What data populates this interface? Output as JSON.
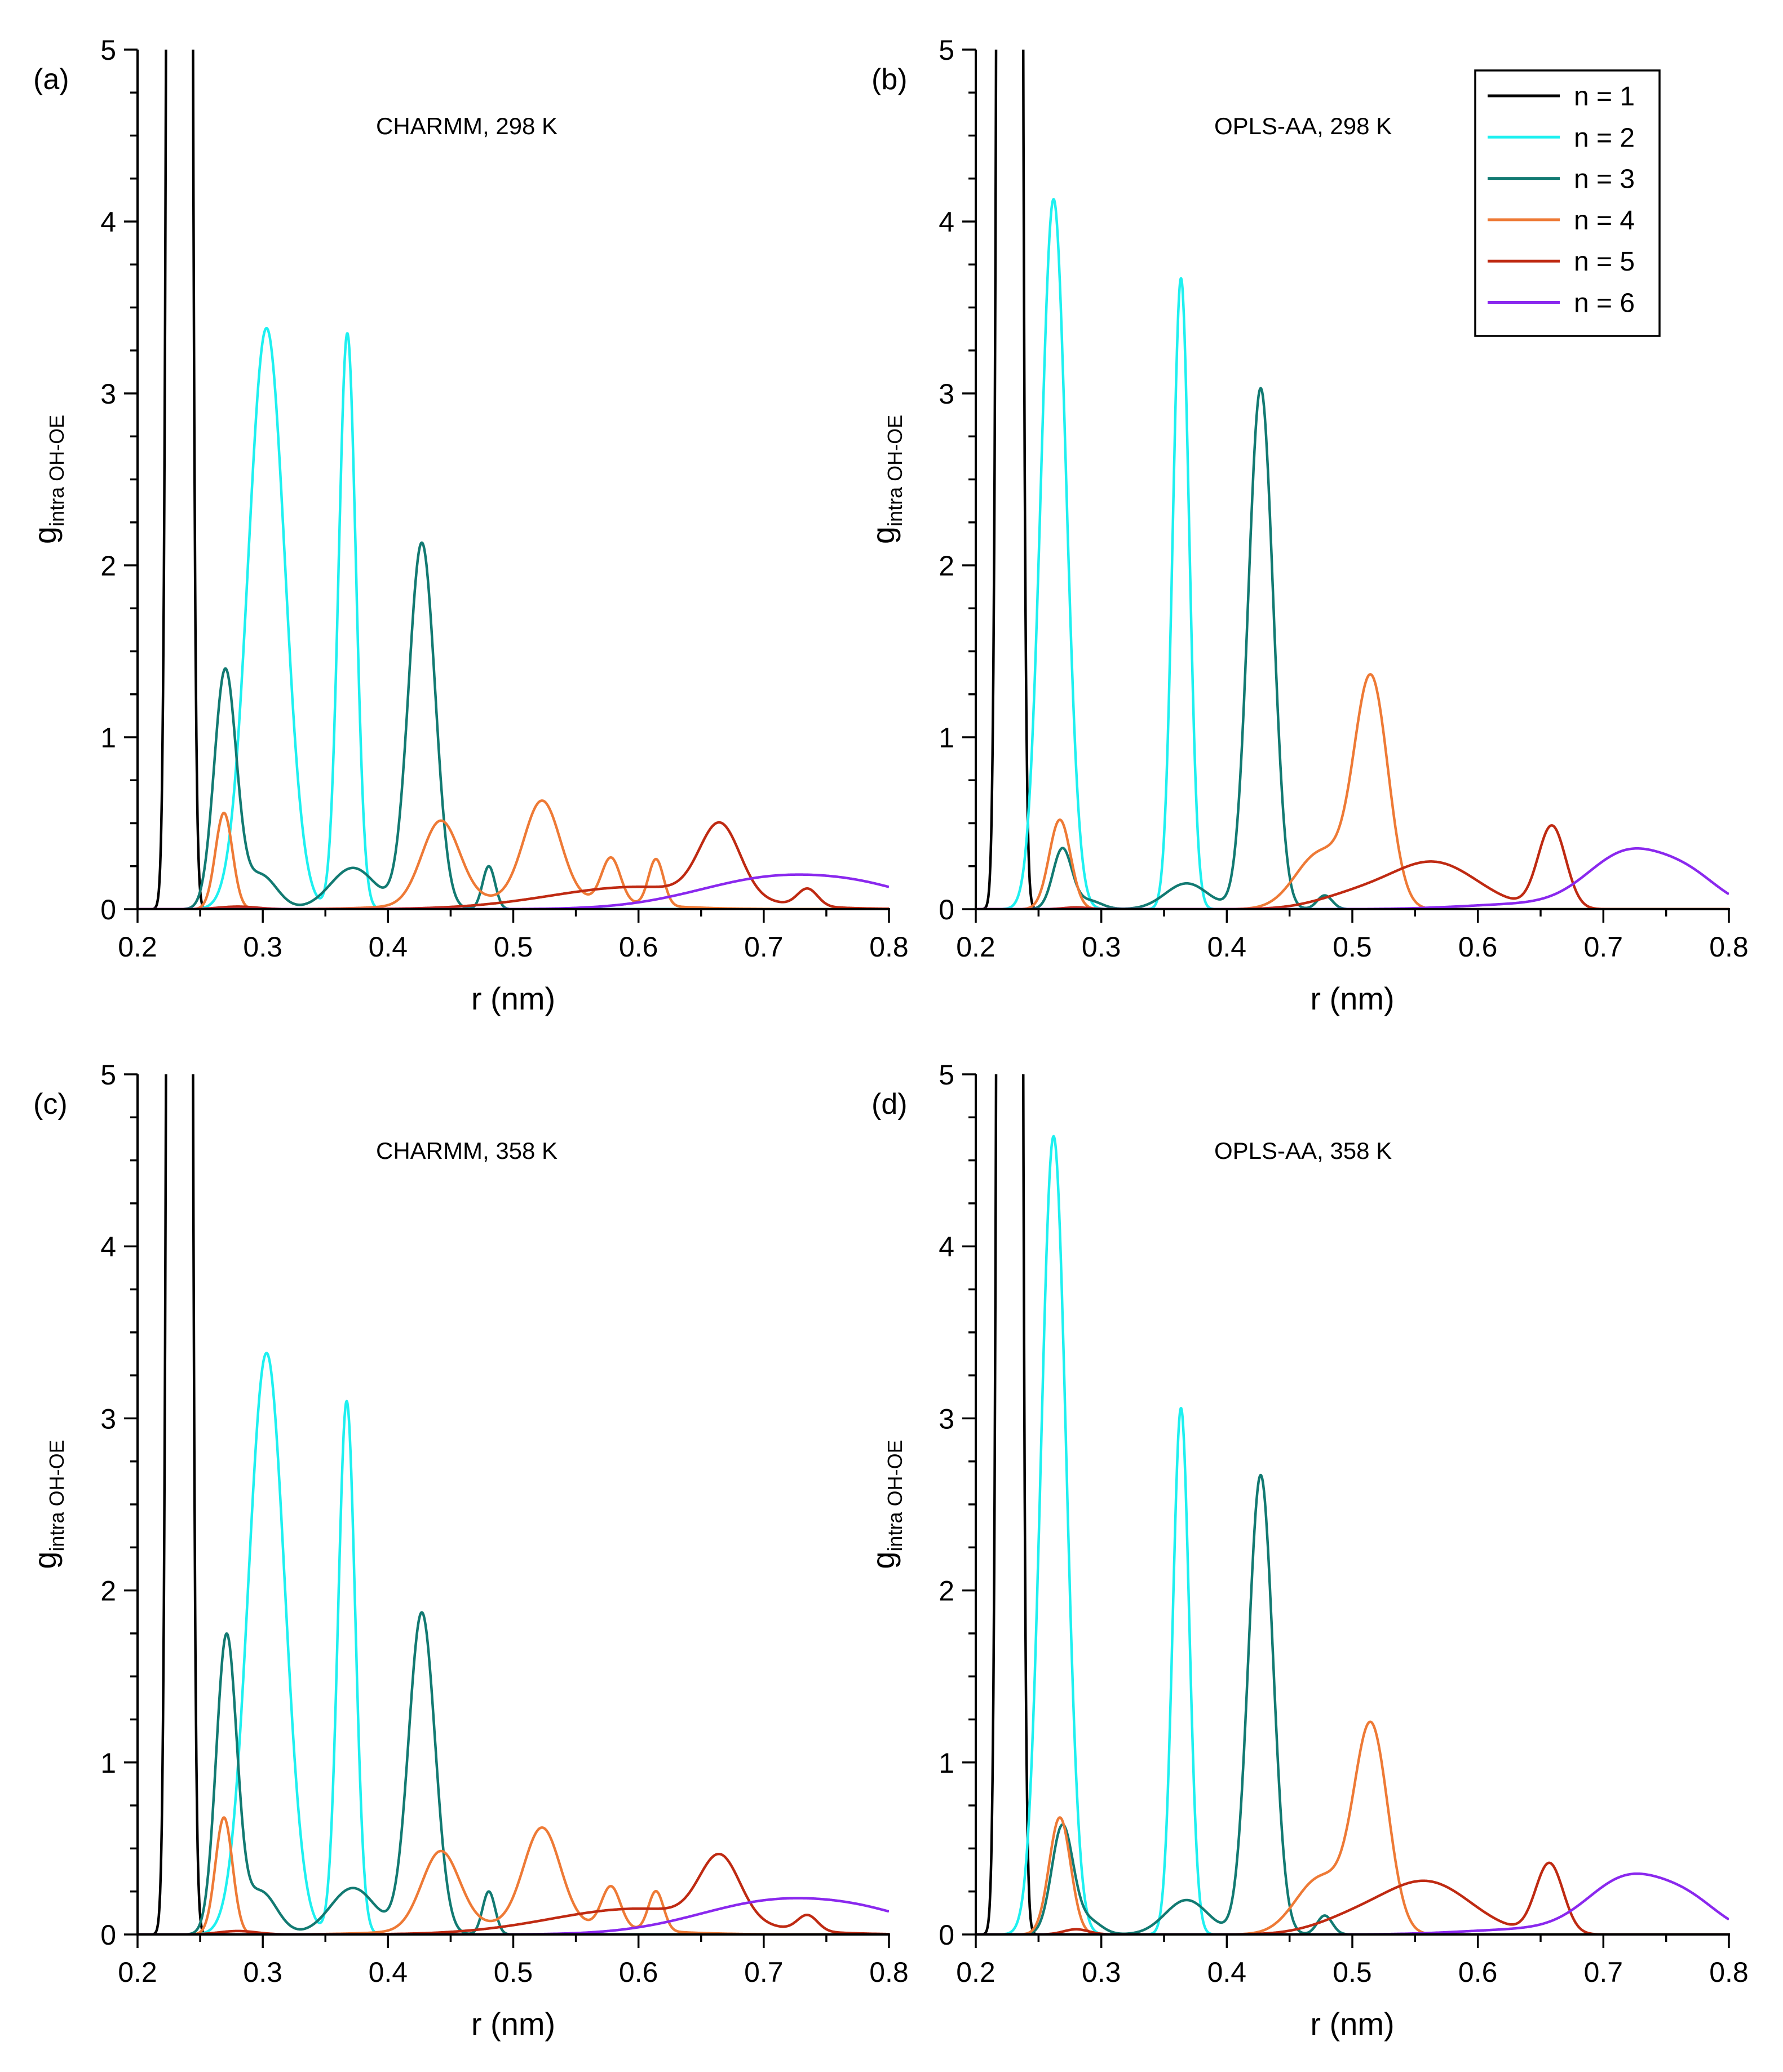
{
  "chart_data": {
    "type": "line",
    "legend": {
      "placement": "top-right",
      "entries": [
        {
          "label": "n = 1",
          "color": "#000000"
        },
        {
          "label": "n = 2",
          "color": "#1ef0f0"
        },
        {
          "label": "n = 3",
          "color": "#127a72"
        },
        {
          "label": "n = 4",
          "color": "#ee7a36"
        },
        {
          "label": "n = 5",
          "color": "#bf2a12"
        },
        {
          "label": "n = 6",
          "color": "#8a28ee"
        }
      ]
    },
    "xlim": [
      0.2,
      0.8
    ],
    "ylim": [
      0,
      5
    ],
    "xticks": [
      0.2,
      0.3,
      0.4,
      0.5,
      0.6,
      0.7,
      0.8
    ],
    "yticks": [
      0,
      1,
      2,
      3,
      4,
      5
    ],
    "xlabel": "r (nm)",
    "ylabel": {
      "main": "g",
      "sub": "intra OH-OE"
    },
    "grid": false,
    "panels": [
      {
        "letter": "(a)",
        "title": "CHARMM, 298 K",
        "series": [
          {
            "name": "n = 1",
            "peaks": [
              [
                0.2335,
                90.0,
                0.0045
              ]
            ]
          },
          {
            "name": "n = 2",
            "peaks": [
              [
                0.303,
                3.38,
                0.0145
              ],
              [
                0.3675,
                3.35,
                0.0068
              ]
            ]
          },
          {
            "name": "n = 3",
            "peaks": [
              [
                0.27,
                1.38,
                0.0088
              ],
              [
                0.298,
                0.2,
                0.013
              ],
              [
                0.372,
                0.24,
                0.018
              ],
              [
                0.427,
                2.13,
                0.0105
              ],
              [
                0.4805,
                0.25,
                0.005
              ]
            ]
          },
          {
            "name": "n = 4",
            "peaks": [
              [
                0.269,
                0.56,
                0.0068
              ],
              [
                0.442,
                0.48,
                0.015
              ],
              [
                0.523,
                0.57,
                0.0145
              ],
              [
                0.578,
                0.26,
                0.0075
              ],
              [
                0.614,
                0.27,
                0.006
              ],
              [
                0.55,
                0.03,
                0.06
              ],
              [
                0.49,
                0.04,
                0.06
              ]
            ]
          },
          {
            "name": "n = 5",
            "peaks": [
              [
                0.665,
                0.42,
                0.016
              ],
              [
                0.735,
                0.1,
                0.008
              ],
              [
                0.6,
                0.13,
                0.07
              ],
              [
                0.28,
                0.015,
                0.015
              ]
            ]
          },
          {
            "name": "n = 6",
            "peaks": [
              [
                0.715,
                0.19,
                0.065
              ],
              [
                0.79,
                0.05,
                0.04
              ]
            ]
          }
        ]
      },
      {
        "letter": "(b)",
        "title": "OPLS-AA, 298 K",
        "series": [
          {
            "name": "n = 1",
            "peaks": [
              [
                0.227,
                90.0,
                0.0045
              ]
            ]
          },
          {
            "name": "n = 2",
            "peaks": [
              [
                0.262,
                4.13,
                0.01
              ],
              [
                0.3635,
                3.67,
                0.0065
              ]
            ]
          },
          {
            "name": "n = 3",
            "peaks": [
              [
                0.269,
                0.35,
                0.0075
              ],
              [
                0.29,
                0.05,
                0.01
              ],
              [
                0.368,
                0.15,
                0.017
              ],
              [
                0.427,
                3.03,
                0.0098
              ],
              [
                0.478,
                0.08,
                0.006
              ]
            ]
          },
          {
            "name": "n = 4",
            "peaks": [
              [
                0.267,
                0.52,
                0.0085
              ],
              [
                0.515,
                1.32,
                0.0135
              ],
              [
                0.475,
                0.33,
                0.02
              ]
            ]
          },
          {
            "name": "n = 5",
            "peaks": [
              [
                0.565,
                0.27,
                0.035
              ],
              [
                0.659,
                0.48,
                0.011
              ],
              [
                0.5,
                0.07,
                0.03
              ],
              [
                0.28,
                0.01,
                0.01
              ]
            ]
          },
          {
            "name": "n = 6",
            "peaks": [
              [
                0.72,
                0.32,
                0.032
              ],
              [
                0.77,
                0.15,
                0.025
              ],
              [
                0.64,
                0.03,
                0.05
              ]
            ]
          }
        ]
      },
      {
        "letter": "(c)",
        "title": "CHARMM, 358 K",
        "series": [
          {
            "name": "n = 1",
            "peaks": [
              [
                0.2335,
                90.0,
                0.0045
              ]
            ]
          },
          {
            "name": "n = 2",
            "peaks": [
              [
                0.303,
                3.38,
                0.0145
              ],
              [
                0.367,
                3.1,
                0.0068
              ]
            ]
          },
          {
            "name": "n = 3",
            "peaks": [
              [
                0.271,
                1.72,
                0.0082
              ],
              [
                0.298,
                0.25,
                0.013
              ],
              [
                0.372,
                0.27,
                0.018
              ],
              [
                0.427,
                1.87,
                0.0105
              ],
              [
                0.4805,
                0.25,
                0.005
              ]
            ]
          },
          {
            "name": "n = 4",
            "peaks": [
              [
                0.269,
                0.68,
                0.0068
              ],
              [
                0.442,
                0.45,
                0.015
              ],
              [
                0.523,
                0.56,
                0.0145
              ],
              [
                0.578,
                0.24,
                0.0075
              ],
              [
                0.614,
                0.23,
                0.006
              ],
              [
                0.55,
                0.03,
                0.06
              ],
              [
                0.49,
                0.04,
                0.06
              ]
            ]
          },
          {
            "name": "n = 5",
            "peaks": [
              [
                0.665,
                0.37,
                0.016
              ],
              [
                0.735,
                0.09,
                0.008
              ],
              [
                0.6,
                0.15,
                0.07
              ],
              [
                0.28,
                0.02,
                0.015
              ]
            ]
          },
          {
            "name": "n = 6",
            "peaks": [
              [
                0.715,
                0.2,
                0.065
              ],
              [
                0.79,
                0.05,
                0.04
              ]
            ]
          }
        ]
      },
      {
        "letter": "(d)",
        "title": "OPLS-AA, 358 K",
        "series": [
          {
            "name": "n = 1",
            "peaks": [
              [
                0.227,
                90.0,
                0.0045
              ]
            ]
          },
          {
            "name": "n = 2",
            "peaks": [
              [
                0.262,
                4.64,
                0.01
              ],
              [
                0.3635,
                3.06,
                0.0065
              ]
            ]
          },
          {
            "name": "n = 3",
            "peaks": [
              [
                0.269,
                0.63,
                0.0085
              ],
              [
                0.29,
                0.08,
                0.01
              ],
              [
                0.368,
                0.2,
                0.017
              ],
              [
                0.427,
                2.67,
                0.0098
              ],
              [
                0.478,
                0.11,
                0.006
              ]
            ]
          },
          {
            "name": "n = 4",
            "peaks": [
              [
                0.267,
                0.68,
                0.0085
              ],
              [
                0.515,
                1.19,
                0.0135
              ],
              [
                0.475,
                0.33,
                0.02
              ]
            ]
          },
          {
            "name": "n = 5",
            "peaks": [
              [
                0.56,
                0.3,
                0.035
              ],
              [
                0.657,
                0.41,
                0.011
              ],
              [
                0.5,
                0.08,
                0.03
              ],
              [
                0.28,
                0.03,
                0.01
              ]
            ]
          },
          {
            "name": "n = 6",
            "peaks": [
              [
                0.72,
                0.32,
                0.032
              ],
              [
                0.77,
                0.15,
                0.025
              ],
              [
                0.64,
                0.03,
                0.05
              ]
            ]
          }
        ]
      }
    ]
  }
}
